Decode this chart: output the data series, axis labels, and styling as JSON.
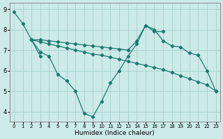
{
  "xlabel": "Humidex (Indice chaleur)",
  "bg_color": "#cceae8",
  "grid_color": "#aad4d0",
  "line_color": "#1a7a6e",
  "xlim": [
    -0.5,
    23.5
  ],
  "ylim": [
    3.5,
    9.3
  ],
  "xticks": [
    0,
    1,
    2,
    3,
    4,
    5,
    6,
    7,
    8,
    9,
    10,
    11,
    12,
    13,
    14,
    15,
    16,
    17,
    18,
    19,
    20,
    21,
    22,
    23
  ],
  "yticks": [
    4,
    5,
    6,
    7,
    8,
    9
  ],
  "line1_x": [
    0,
    1,
    2,
    3
  ],
  "line1_y": [
    8.85,
    8.3,
    7.5,
    6.7
  ],
  "line2_x": [
    2,
    3,
    4,
    5,
    6,
    7,
    8,
    9,
    10,
    11,
    12,
    13,
    14,
    15,
    16,
    17
  ],
  "line2_y": [
    7.5,
    6.9,
    6.7,
    5.8,
    5.5,
    5.0,
    3.9,
    3.75,
    4.5,
    5.4,
    6.0,
    6.7,
    7.3,
    8.2,
    7.9,
    7.9
  ],
  "line3_x": [
    2,
    3,
    4,
    5,
    6,
    7,
    8,
    9,
    10,
    11,
    12,
    13,
    14,
    15,
    16,
    17,
    18,
    19,
    20,
    21,
    22,
    23
  ],
  "line3_y": [
    7.5,
    7.4,
    7.3,
    7.2,
    7.1,
    7.0,
    6.9,
    6.8,
    6.75,
    6.65,
    6.55,
    6.45,
    6.35,
    6.25,
    6.15,
    6.05,
    5.9,
    5.75,
    5.6,
    5.45,
    5.3,
    5.0
  ],
  "line4_x": [
    2,
    3,
    4,
    5,
    6,
    7,
    8,
    9,
    10,
    11,
    12,
    13,
    14,
    15,
    16,
    17,
    18,
    19,
    20,
    21,
    22,
    23
  ],
  "line4_y": [
    7.5,
    7.5,
    7.45,
    7.4,
    7.35,
    7.3,
    7.25,
    7.2,
    7.15,
    7.1,
    7.05,
    7.0,
    7.45,
    8.2,
    8.0,
    7.45,
    7.2,
    7.15,
    6.85,
    6.75,
    6.0,
    5.0
  ]
}
